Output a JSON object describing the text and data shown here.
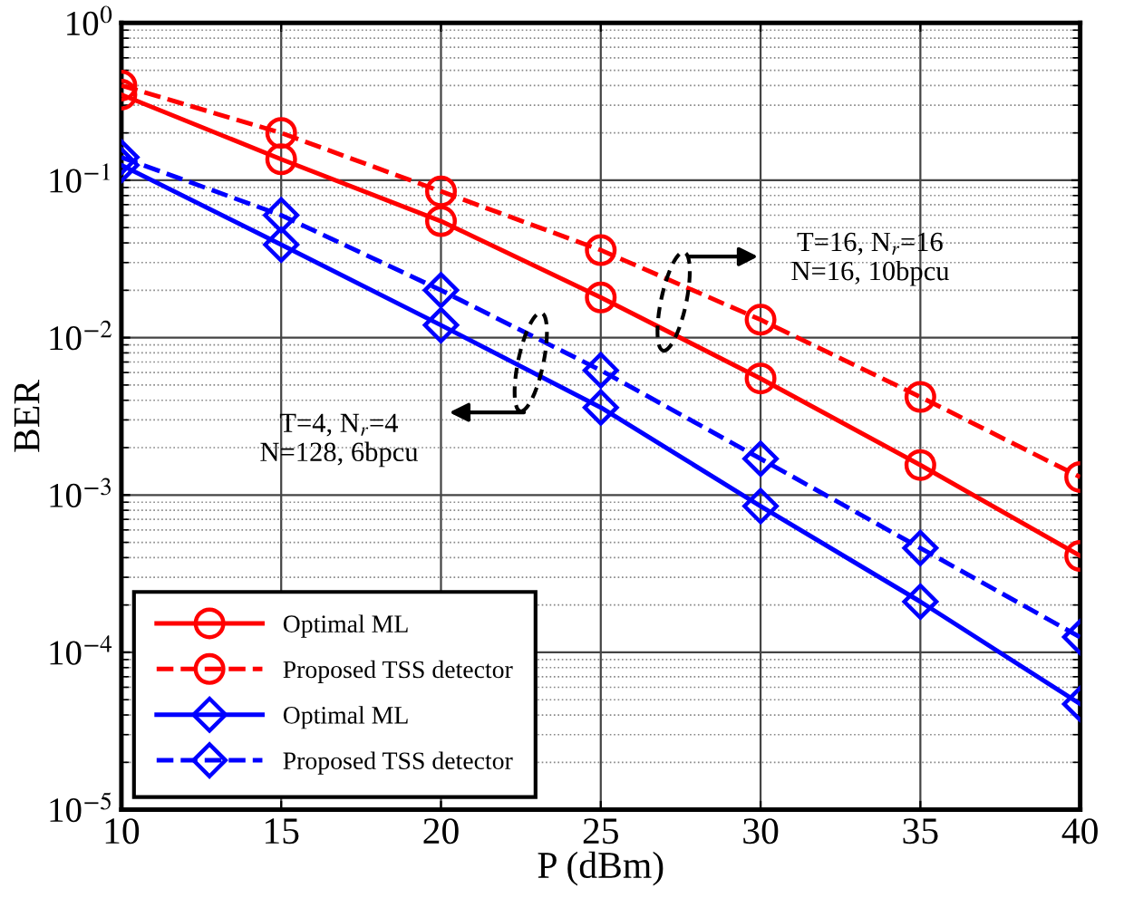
{
  "chart_data": {
    "type": "line",
    "xlabel": "P (dBm)",
    "ylabel": "BER",
    "x": [
      10,
      15,
      20,
      25,
      30,
      35,
      40
    ],
    "series": [
      {
        "name": "Optimal ML",
        "color": "#ff0000",
        "marker": "circle",
        "line_style": "solid",
        "values": [
          0.35,
          0.136,
          0.055,
          0.018,
          0.0055,
          0.00155,
          0.00041
        ]
      },
      {
        "name": "Proposed TSS detector",
        "color": "#ff0000",
        "marker": "circle",
        "line_style": "dashed",
        "values": [
          0.4,
          0.2,
          0.085,
          0.036,
          0.013,
          0.0042,
          0.0013
        ]
      },
      {
        "name": "Optimal ML",
        "color": "#0000ff",
        "marker": "diamond",
        "line_style": "solid",
        "values": [
          0.125,
          0.039,
          0.012,
          0.0036,
          0.00085,
          0.00021,
          4.7e-05
        ]
      },
      {
        "name": "Proposed TSS detector",
        "color": "#0000ff",
        "marker": "diamond",
        "line_style": "dashed",
        "values": [
          0.14,
          0.06,
          0.02,
          0.0062,
          0.0017,
          0.00046,
          0.000125
        ]
      }
    ],
    "log": "y",
    "xlim": [
      10,
      40
    ],
    "xticks": [
      10,
      15,
      20,
      25,
      30,
      35,
      40
    ],
    "ylim": [
      1e-05,
      1
    ],
    "yticks": [
      {
        "value": 1e-05,
        "label": "10$^{−5}$"
      },
      {
        "value": 0.0001,
        "label": "10$^{−4}$"
      },
      {
        "value": 0.001,
        "label": "10$^{−3}$"
      },
      {
        "value": 0.01,
        "label": "10$^{−2}$"
      },
      {
        "value": 0.1,
        "label": "10$^{−1}$"
      },
      {
        "value": 1,
        "label": "10$^{0}$"
      }
    ],
    "annotations": [
      "T=4, N$_{r}$=4\nN=128, 6bpcu",
      "T=16, N$_{r}$=16\nN=16, 10bpcu"
    ],
    "grid": true,
    "legend": "bottom left"
  }
}
